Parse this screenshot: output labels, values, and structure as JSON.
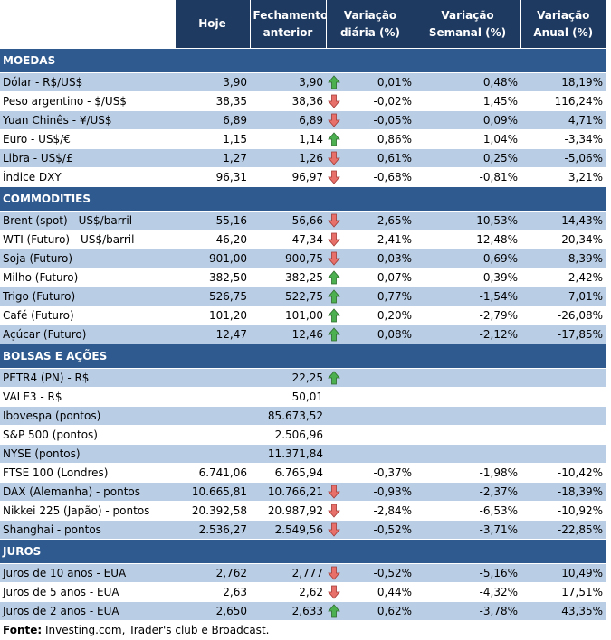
{
  "header": {
    "columns": [
      "Hoje",
      "Fechamento anterior",
      "Variação diária (%)",
      "Variação Semanal (%)",
      "Variação Anual (%)"
    ]
  },
  "sections": [
    {
      "title": "MOEDAS",
      "rows": [
        [
          "Dólar - R$/US$",
          "3,90",
          "3,90",
          "0,01%",
          "0,48%",
          "18,19%"
        ],
        [
          "Peso argentino - $/US$",
          "38,35",
          "38,36",
          "-0,02%",
          "1,45%",
          "116,24%"
        ],
        [
          "Yuan Chinês - ¥/US$",
          "6,89",
          "6,89",
          "-0,05%",
          "0,09%",
          "4,71%"
        ],
        [
          "Euro - US$/€",
          "1,15",
          "1,14",
          "0,86%",
          "1,04%",
          "-3,34%"
        ],
        [
          "Libra - US$/£",
          "1,27",
          "1,26",
          "0,61%",
          "0,25%",
          "-5,06%"
        ],
        [
          "Índice DXY",
          "96,31",
          "96,97",
          "-0,68%",
          "-0,81%",
          "3,21%"
        ]
      ]
    },
    {
      "title": "COMMODITIES",
      "rows": [
        [
          "Brent (spot) - US$/barril",
          "55,16",
          "56,66",
          "-2,65%",
          "-10,53%",
          "-14,43%"
        ],
        [
          "WTI (Futuro) - US$/barril",
          "46,20",
          "47,34",
          "-2,41%",
          "-12,48%",
          "-20,34%"
        ],
        [
          "Soja (Futuro)",
          "901,00",
          "900,75",
          "0,03%",
          "-0,69%",
          "-8,39%"
        ],
        [
          "Milho (Futuro)",
          "382,50",
          "382,25",
          "0,07%",
          "-0,39%",
          "-2,42%"
        ],
        [
          "Trigo (Futuro)",
          "526,75",
          "522,75",
          "0,77%",
          "-1,54%",
          "7,01%"
        ],
        [
          "Café (Futuro)",
          "101,20",
          "101,00",
          "0,20%",
          "-2,79%",
          "-26,08%"
        ],
        [
          "Açúcar (Futuro)",
          "12,47",
          "12,46",
          "0,08%",
          "-2,12%",
          "-17,85%"
        ]
      ]
    },
    {
      "title": "BOLSAS E AÇÕES",
      "rows": [
        [
          "PETR4 (PN) - R$",
          null,
          "22,25",
          null,
          null,
          null
        ],
        [
          "VALE3 - R$",
          null,
          "50,01",
          null,
          null,
          null
        ],
        [
          "Ibovespa (pontos)",
          null,
          "85.673,52",
          null,
          null,
          null
        ],
        [
          "S&P 500 (pontos)",
          null,
          "2.506,96",
          null,
          null,
          null
        ],
        [
          "NYSE (pontos)",
          null,
          "11.371,84",
          null,
          null,
          null
        ],
        [
          "FTSE 100 (Londres)",
          "6.741,06",
          "6.765,94",
          "-0,37%",
          "-1,98%",
          "-10,42%"
        ],
        [
          "DAX (Alemanha) - pontos",
          "10.665,81",
          "10.766,21",
          "-0,93%",
          "-2,37%",
          "-18,39%"
        ],
        [
          "Nikkei 225 (Japão) - pontos",
          "20.392,58",
          "20.987,92",
          "-2,84%",
          "-6,53%",
          "-10,92%"
        ],
        [
          "Shanghai - pontos",
          "2.536,27",
          "2.549,56",
          "-0,52%",
          "-3,71%",
          "-22,85%"
        ]
      ]
    },
    {
      "title": "JUROS",
      "rows": [
        [
          "Juros de 10 anos - EUA",
          "2,762",
          "2,777",
          "-0,52%",
          "-5,16%",
          "10,49%"
        ],
        [
          "Juros de 5 anos - EUA",
          "2,63",
          "2,62",
          "0,44%",
          "-4,32%",
          "17,51%"
        ],
        [
          "Juros de 2 anos - EUA",
          "2,650",
          "2,633",
          "0,62%",
          "-3,78%",
          "43,35%"
        ]
      ]
    }
  ],
  "footer": {
    "label": "Fonte:",
    "text": " Investing.com, Trader's club e Broadcast."
  }
}
